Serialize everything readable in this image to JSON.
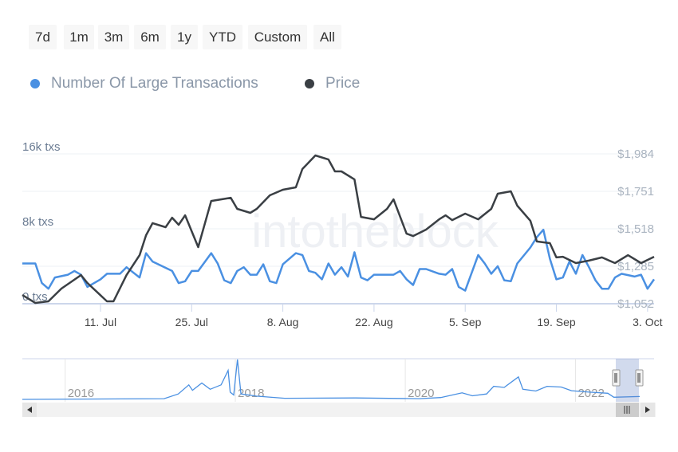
{
  "range_buttons": [
    "7d",
    "1m",
    "3m",
    "6m",
    "1y",
    "YTD",
    "Custom",
    "All"
  ],
  "legend": [
    {
      "label": "Number Of Large Transactions",
      "color": "#4a90e2"
    },
    {
      "label": "Price",
      "color": "#3a3f44"
    }
  ],
  "watermark": "intotheblock",
  "chart_data": {
    "type": "line",
    "x_range": [
      "2022-06-29",
      "2022-10-04"
    ],
    "x_ticks": [
      "11. Jul",
      "25. Jul",
      "8. Aug",
      "22. Aug",
      "5. Sep",
      "19. Sep",
      "3. Oct"
    ],
    "x_tick_dates": [
      "2022-07-11",
      "2022-07-25",
      "2022-08-08",
      "2022-08-22",
      "2022-09-05",
      "2022-09-19",
      "2022-10-03"
    ],
    "y_left": {
      "ticks": [
        "0 txs",
        "8k txs",
        "16k txs"
      ],
      "range": [
        0,
        16000
      ]
    },
    "y_right": {
      "ticks": [
        "$1,052",
        "$1,285",
        "$1,518",
        "$1,751",
        "$1,984"
      ],
      "range": [
        1052,
        1984
      ]
    },
    "grid": true,
    "legend_position": "top-left",
    "series": [
      {
        "name": "Number Of Large Transactions",
        "axis": "left",
        "color": "#4a90e2",
        "points": [
          [
            "2022-06-29",
            4300
          ],
          [
            "2022-07-01",
            4300
          ],
          [
            "2022-07-02",
            2200
          ],
          [
            "2022-07-03",
            1600
          ],
          [
            "2022-07-04",
            2800
          ],
          [
            "2022-07-06",
            3100
          ],
          [
            "2022-07-07",
            3500
          ],
          [
            "2022-07-08",
            3100
          ],
          [
            "2022-07-09",
            1800
          ],
          [
            "2022-07-11",
            2600
          ],
          [
            "2022-07-12",
            3200
          ],
          [
            "2022-07-14",
            3200
          ],
          [
            "2022-07-15",
            3900
          ],
          [
            "2022-07-17",
            2800
          ],
          [
            "2022-07-18",
            5400
          ],
          [
            "2022-07-19",
            4500
          ],
          [
            "2022-07-22",
            3500
          ],
          [
            "2022-07-23",
            2200
          ],
          [
            "2022-07-24",
            2400
          ],
          [
            "2022-07-25",
            3500
          ],
          [
            "2022-07-26",
            3500
          ],
          [
            "2022-07-28",
            5400
          ],
          [
            "2022-07-29",
            4300
          ],
          [
            "2022-07-30",
            2500
          ],
          [
            "2022-07-31",
            2200
          ],
          [
            "2022-08-01",
            3500
          ],
          [
            "2022-08-02",
            3900
          ],
          [
            "2022-08-03",
            3100
          ],
          [
            "2022-08-04",
            3100
          ],
          [
            "2022-08-05",
            4200
          ],
          [
            "2022-08-06",
            2400
          ],
          [
            "2022-08-07",
            2200
          ],
          [
            "2022-08-08",
            4200
          ],
          [
            "2022-08-10",
            5400
          ],
          [
            "2022-08-11",
            5200
          ],
          [
            "2022-08-12",
            3500
          ],
          [
            "2022-08-13",
            3300
          ],
          [
            "2022-08-14",
            2600
          ],
          [
            "2022-08-15",
            4300
          ],
          [
            "2022-08-16",
            3100
          ],
          [
            "2022-08-17",
            3900
          ],
          [
            "2022-08-18",
            2900
          ],
          [
            "2022-08-19",
            5500
          ],
          [
            "2022-08-20",
            2800
          ],
          [
            "2022-08-21",
            2500
          ],
          [
            "2022-08-22",
            3100
          ],
          [
            "2022-08-25",
            3100
          ],
          [
            "2022-08-26",
            3500
          ],
          [
            "2022-08-27",
            2600
          ],
          [
            "2022-08-28",
            2000
          ],
          [
            "2022-08-29",
            3700
          ],
          [
            "2022-08-30",
            3700
          ],
          [
            "2022-09-01",
            3200
          ],
          [
            "2022-09-02",
            3100
          ],
          [
            "2022-09-03",
            3700
          ],
          [
            "2022-09-04",
            1800
          ],
          [
            "2022-09-05",
            1400
          ],
          [
            "2022-09-07",
            5200
          ],
          [
            "2022-09-08",
            4300
          ],
          [
            "2022-09-09",
            3200
          ],
          [
            "2022-09-10",
            4000
          ],
          [
            "2022-09-11",
            2500
          ],
          [
            "2022-09-12",
            2400
          ],
          [
            "2022-09-13",
            4300
          ],
          [
            "2022-09-15",
            6000
          ],
          [
            "2022-09-16",
            7100
          ],
          [
            "2022-09-17",
            7900
          ],
          [
            "2022-09-18",
            4800
          ],
          [
            "2022-09-19",
            2600
          ],
          [
            "2022-09-20",
            2800
          ],
          [
            "2022-09-21",
            4500
          ],
          [
            "2022-09-22",
            3200
          ],
          [
            "2022-09-23",
            5200
          ],
          [
            "2022-09-24",
            3900
          ],
          [
            "2022-09-25",
            2500
          ],
          [
            "2022-09-26",
            1600
          ],
          [
            "2022-09-27",
            1600
          ],
          [
            "2022-09-28",
            2800
          ],
          [
            "2022-09-29",
            3200
          ],
          [
            "2022-10-01",
            2900
          ],
          [
            "2022-10-02",
            3100
          ],
          [
            "2022-10-03",
            1600
          ],
          [
            "2022-10-04",
            2600
          ]
        ]
      },
      {
        "name": "Price",
        "axis": "right",
        "color": "#3a3f44",
        "points": [
          [
            "2022-06-29",
            1106
          ],
          [
            "2022-07-01",
            1057
          ],
          [
            "2022-07-03",
            1067
          ],
          [
            "2022-07-05",
            1146
          ],
          [
            "2022-07-08",
            1230
          ],
          [
            "2022-07-09",
            1181
          ],
          [
            "2022-07-12",
            1067
          ],
          [
            "2022-07-13",
            1067
          ],
          [
            "2022-07-15",
            1230
          ],
          [
            "2022-07-17",
            1354
          ],
          [
            "2022-07-18",
            1478
          ],
          [
            "2022-07-19",
            1553
          ],
          [
            "2022-07-21",
            1528
          ],
          [
            "2022-07-22",
            1587
          ],
          [
            "2022-07-23",
            1543
          ],
          [
            "2022-07-24",
            1602
          ],
          [
            "2022-07-26",
            1404
          ],
          [
            "2022-07-28",
            1691
          ],
          [
            "2022-07-31",
            1711
          ],
          [
            "2022-08-01",
            1642
          ],
          [
            "2022-08-03",
            1617
          ],
          [
            "2022-08-04",
            1642
          ],
          [
            "2022-08-06",
            1726
          ],
          [
            "2022-08-08",
            1761
          ],
          [
            "2022-08-10",
            1776
          ],
          [
            "2022-08-11",
            1890
          ],
          [
            "2022-08-13",
            1974
          ],
          [
            "2022-08-15",
            1949
          ],
          [
            "2022-08-16",
            1875
          ],
          [
            "2022-08-17",
            1875
          ],
          [
            "2022-08-19",
            1825
          ],
          [
            "2022-08-20",
            1592
          ],
          [
            "2022-08-22",
            1577
          ],
          [
            "2022-08-24",
            1642
          ],
          [
            "2022-08-25",
            1701
          ],
          [
            "2022-08-27",
            1488
          ],
          [
            "2022-08-28",
            1473
          ],
          [
            "2022-08-30",
            1513
          ],
          [
            "2022-09-01",
            1577
          ],
          [
            "2022-09-02",
            1602
          ],
          [
            "2022-09-03",
            1572
          ],
          [
            "2022-09-05",
            1612
          ],
          [
            "2022-09-07",
            1577
          ],
          [
            "2022-09-09",
            1642
          ],
          [
            "2022-09-10",
            1736
          ],
          [
            "2022-09-12",
            1751
          ],
          [
            "2022-09-13",
            1662
          ],
          [
            "2022-09-15",
            1568
          ],
          [
            "2022-09-16",
            1439
          ],
          [
            "2022-09-18",
            1429
          ],
          [
            "2022-09-19",
            1340
          ],
          [
            "2022-09-20",
            1344
          ],
          [
            "2022-09-22",
            1305
          ],
          [
            "2022-09-24",
            1320
          ],
          [
            "2022-09-26",
            1340
          ],
          [
            "2022-09-28",
            1305
          ],
          [
            "2022-09-30",
            1354
          ],
          [
            "2022-10-02",
            1305
          ],
          [
            "2022-10-04",
            1344
          ]
        ]
      }
    ],
    "navigator": {
      "year_labels": [
        "2016",
        "2018",
        "2020",
        "2022"
      ],
      "year_dates": [
        "2016-01-01",
        "2018-01-01",
        "2020-01-01",
        "2022-01-01"
      ],
      "x_range": [
        "2015-07-01",
        "2022-10-04"
      ],
      "series": [
        [
          "2015-07-01",
          0
        ],
        [
          "2017-03-01",
          200
        ],
        [
          "2017-05-01",
          1500
        ],
        [
          "2017-06-15",
          4000
        ],
        [
          "2017-07-01",
          2500
        ],
        [
          "2017-08-10",
          4500
        ],
        [
          "2017-09-15",
          2800
        ],
        [
          "2017-11-01",
          4000
        ],
        [
          "2017-12-01",
          8000
        ],
        [
          "2017-12-10",
          2000
        ],
        [
          "2017-12-25",
          1200
        ],
        [
          "2018-01-10",
          11000
        ],
        [
          "2018-01-25",
          1500
        ],
        [
          "2018-04-01",
          900
        ],
        [
          "2018-08-01",
          300
        ],
        [
          "2019-06-01",
          400
        ],
        [
          "2020-03-01",
          200
        ],
        [
          "2020-06-01",
          500
        ],
        [
          "2020-09-01",
          1800
        ],
        [
          "2020-10-15",
          1000
        ],
        [
          "2020-12-15",
          1500
        ],
        [
          "2021-01-15",
          3600
        ],
        [
          "2021-03-01",
          3300
        ],
        [
          "2021-05-01",
          6200
        ],
        [
          "2021-05-20",
          2800
        ],
        [
          "2021-07-15",
          2300
        ],
        [
          "2021-09-01",
          3600
        ],
        [
          "2021-11-01",
          3400
        ],
        [
          "2021-12-15",
          2400
        ],
        [
          "2022-03-01",
          2000
        ],
        [
          "2022-05-20",
          1700
        ],
        [
          "2022-06-15",
          600
        ],
        [
          "2022-10-04",
          800
        ]
      ]
    }
  }
}
